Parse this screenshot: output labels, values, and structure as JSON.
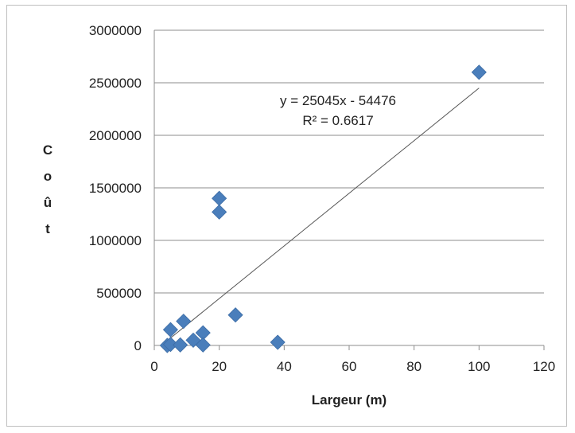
{
  "chart_data": {
    "type": "scatter",
    "xlabel": "Largeur (m)",
    "ylabel": "Coût",
    "xlim": [
      0,
      120
    ],
    "ylim": [
      0,
      3000000
    ],
    "x_ticks": [
      "0",
      "20",
      "40",
      "60",
      "80",
      "100",
      "120"
    ],
    "y_ticks": [
      "0",
      "500000",
      "1000000",
      "1500000",
      "2000000",
      "2500000",
      "3000000"
    ],
    "grid": "horizontal",
    "marker_color": "#4a7ebb",
    "series": [
      {
        "points": [
          [
            4,
            0
          ],
          [
            5,
            10000
          ],
          [
            5,
            150000
          ],
          [
            8,
            5000
          ],
          [
            9,
            230000
          ],
          [
            12,
            50000
          ],
          [
            15,
            120000
          ],
          [
            15,
            5000
          ],
          [
            20,
            1400000
          ],
          [
            20,
            1270000
          ],
          [
            25,
            290000
          ],
          [
            38,
            30000
          ],
          [
            100,
            2600000
          ]
        ]
      }
    ],
    "trendline": {
      "slope": 25045,
      "intercept": -54476,
      "x_range": [
        4,
        100
      ],
      "equation": "y = 25045x - 54476",
      "r2": "R² = 0.6617"
    }
  }
}
